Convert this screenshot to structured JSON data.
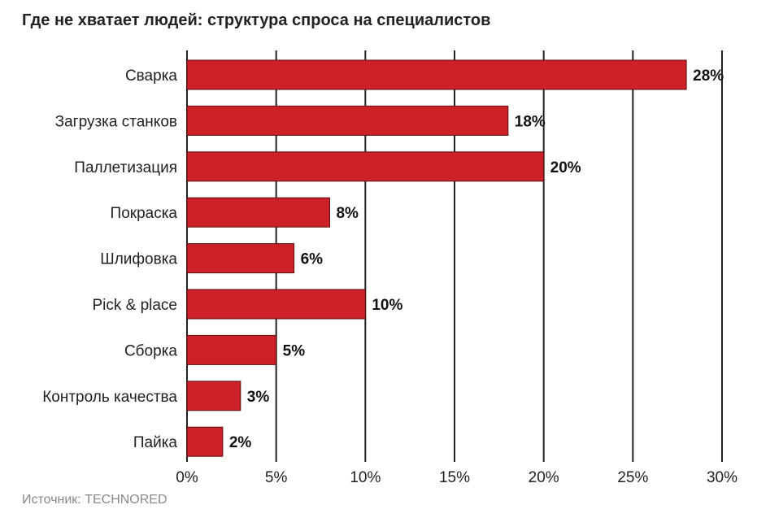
{
  "title": "Где не хватает людей: структура спроса на специалистов",
  "source": "Источник: TECHNORED",
  "colors": {
    "bar": "#cc2128",
    "bar_edge": "#5a1010",
    "grid": "#222222"
  },
  "chart_data": {
    "type": "bar",
    "orientation": "horizontal",
    "categories": [
      "Сварка",
      "Загрузка станков",
      "Паллетизация",
      "Покраска",
      "Шлифовка",
      "Pick & place",
      "Сборка",
      "Контроль качества",
      "Пайка"
    ],
    "values": [
      28,
      18,
      20,
      8,
      6,
      10,
      5,
      3,
      2
    ],
    "value_labels": [
      "28%",
      "18%",
      "20%",
      "8%",
      "6%",
      "10%",
      "5%",
      "3%",
      "2%"
    ],
    "xlim": [
      0,
      30
    ],
    "xticks": [
      0,
      5,
      10,
      15,
      20,
      25,
      30
    ],
    "xtick_labels": [
      "0%",
      "5%",
      "10%",
      "15%",
      "20%",
      "25%",
      "30%"
    ],
    "grid": true
  }
}
